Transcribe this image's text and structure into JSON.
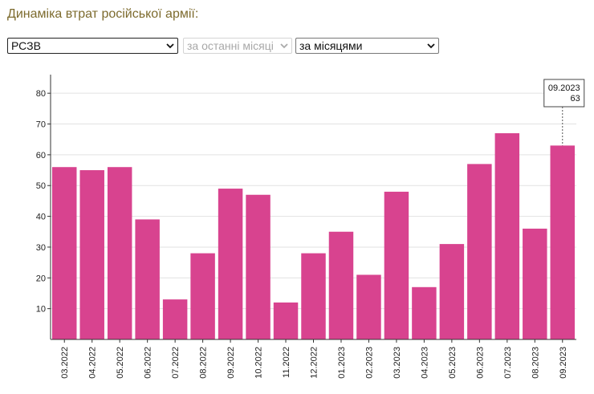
{
  "header": {
    "title": "Динаміка втрат російської армії:"
  },
  "filters": {
    "type": {
      "value": "РСЗВ"
    },
    "period": {
      "value": "за останні місяці"
    },
    "grouping": {
      "value": "за місяцями"
    }
  },
  "colors": {
    "bar": "#d8438f",
    "grid": "#e2e2e2",
    "axis": "#333333"
  },
  "chart_data": {
    "type": "bar",
    "title": "",
    "xlabel": "",
    "ylabel": "",
    "categories": [
      "03.2022",
      "04.2022",
      "05.2022",
      "06.2022",
      "07.2022",
      "08.2022",
      "09.2022",
      "10.2022",
      "11.2022",
      "12.2022",
      "01.2023",
      "02.2023",
      "03.2023",
      "04.2023",
      "05.2023",
      "06.2023",
      "07.2023",
      "08.2023",
      "09.2023"
    ],
    "values": [
      56,
      55,
      56,
      39,
      13,
      28,
      49,
      47,
      12,
      28,
      35,
      21,
      48,
      17,
      31,
      57,
      67,
      36,
      63
    ],
    "ylim": [
      0,
      85
    ],
    "yticks": [
      10,
      20,
      30,
      40,
      50,
      60,
      70,
      80
    ],
    "grid": true,
    "tooltip": {
      "label": "09.2023",
      "value": "63"
    }
  }
}
